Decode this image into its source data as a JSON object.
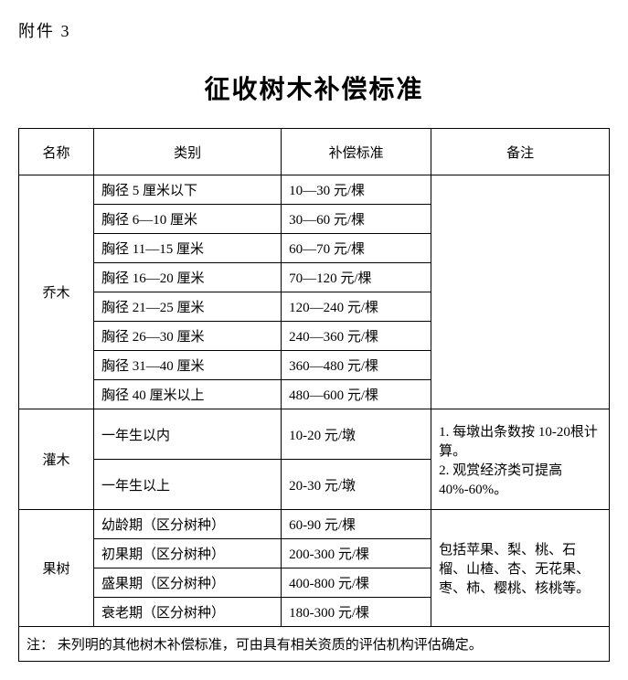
{
  "attachment_label": "附件 3",
  "title": "征收树木补偿标准",
  "columns": [
    "名称",
    "类别",
    "补偿标准",
    "备注"
  ],
  "sections": [
    {
      "name": "乔木",
      "remark": "",
      "items": [
        {
          "category": "胸径 5 厘米以下",
          "standard": "10—30 元/棵"
        },
        {
          "category": "胸径 6—10 厘米",
          "standard": "30—60 元/棵"
        },
        {
          "category": "胸径 11—15 厘米",
          "standard": "60—70 元/棵"
        },
        {
          "category": "胸径 16—20 厘米",
          "standard": "70—120 元/棵"
        },
        {
          "category": "胸径 21—25 厘米",
          "standard": "120—240 元/棵"
        },
        {
          "category": "胸径 26—30 厘米",
          "standard": "240—360 元/棵"
        },
        {
          "category": "胸径 31—40 厘米",
          "standard": "360—480 元/棵"
        },
        {
          "category": "胸径 40 厘米以上",
          "standard": "480—600 元/棵"
        }
      ]
    },
    {
      "name": "灌木",
      "remark": "1. 每墩出条数按 10-20根计算。\n2. 观赏经济类可提高40%-60%。",
      "items": [
        {
          "category": "一年生以内",
          "standard": "10-20 元/墩"
        },
        {
          "category": "一年生以上",
          "standard": "20-30 元/墩"
        }
      ]
    },
    {
      "name": "果树",
      "remark": "包括苹果、梨、桃、石榴、山楂、杏、无花果、枣、柿、樱桃、核桃等。",
      "items": [
        {
          "category": "幼龄期（区分树种）",
          "standard": "60-90 元/棵"
        },
        {
          "category": "初果期（区分树种）",
          "standard": "200-300 元/棵"
        },
        {
          "category": "盛果期（区分树种）",
          "standard": "400-800 元/棵"
        },
        {
          "category": "衰老期（区分树种）",
          "standard": "180-300 元/棵"
        }
      ]
    }
  ],
  "footnote": "注：  未列明的其他树木补偿标准，可由具有相关资质的评估机构评估确定。"
}
